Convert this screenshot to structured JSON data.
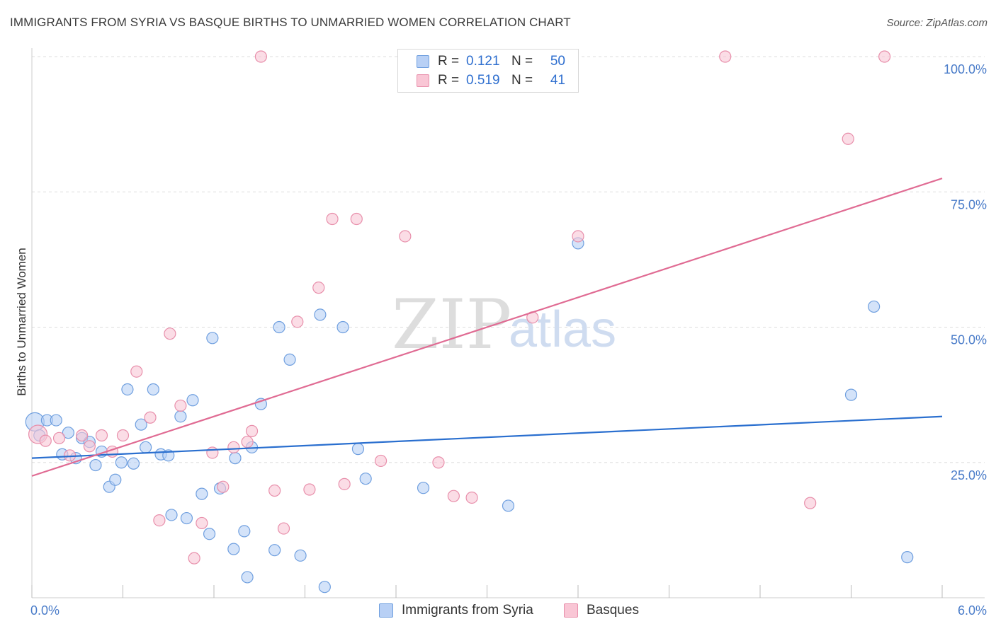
{
  "title": "IMMIGRANTS FROM SYRIA VS BASQUE BIRTHS TO UNMARRIED WOMEN CORRELATION CHART",
  "source": "Source: ZipAtlas.com",
  "watermark": {
    "zip": "ZIP",
    "atlas": "atlas"
  },
  "colors": {
    "syria_fill": "#b8d0f5",
    "syria_stroke": "#6f9fdf",
    "syria_line": "#2a6fcf",
    "basque_fill": "#f9c6d5",
    "basque_stroke": "#e88fab",
    "basque_line": "#e06b93",
    "grid": "#dddddd",
    "tick_text": "#4a7cc9"
  },
  "legend": {
    "rows": [
      {
        "r_label": "R =",
        "r_value": "0.121",
        "n_label": "N =",
        "n_value": "50"
      },
      {
        "r_label": "R =",
        "r_value": "0.519",
        "n_label": "N =",
        "n_value": "41"
      }
    ]
  },
  "bottom_legend": {
    "syria": "Immigrants from Syria",
    "basques": "Basques"
  },
  "chart_data": {
    "type": "scatter",
    "title": "IMMIGRANTS FROM SYRIA VS BASQUE BIRTHS TO UNMARRIED WOMEN CORRELATION CHART",
    "xlabel": "",
    "ylabel": "Births to Unmarried Women",
    "xlim": [
      0,
      6.0
    ],
    "ylim": [
      0,
      100
    ],
    "x_tick_labels": [
      "0.0%",
      "6.0%"
    ],
    "y_ticks": [
      25,
      50,
      75,
      100
    ],
    "y_tick_labels": [
      "25.0%",
      "50.0%",
      "75.0%",
      "100.0%"
    ],
    "series": [
      {
        "name": "Immigrants from Syria",
        "r": 0.121,
        "n": 50,
        "trend": {
          "x": [
            0,
            6.0
          ],
          "y": [
            25.8,
            33.5
          ]
        },
        "points": [
          {
            "x": 0.02,
            "y": 32.5,
            "big": true
          },
          {
            "x": 0.05,
            "y": 30.0
          },
          {
            "x": 0.1,
            "y": 32.8
          },
          {
            "x": 0.16,
            "y": 32.8
          },
          {
            "x": 0.2,
            "y": 26.5
          },
          {
            "x": 0.24,
            "y": 30.5
          },
          {
            "x": 0.29,
            "y": 25.8
          },
          {
            "x": 0.33,
            "y": 29.5
          },
          {
            "x": 0.38,
            "y": 28.8
          },
          {
            "x": 0.42,
            "y": 24.5
          },
          {
            "x": 0.46,
            "y": 27.0
          },
          {
            "x": 0.51,
            "y": 20.5
          },
          {
            "x": 0.55,
            "y": 21.8
          },
          {
            "x": 0.59,
            "y": 25.0
          },
          {
            "x": 0.63,
            "y": 38.5
          },
          {
            "x": 0.67,
            "y": 24.8
          },
          {
            "x": 0.72,
            "y": 32.0
          },
          {
            "x": 0.75,
            "y": 27.8
          },
          {
            "x": 0.8,
            "y": 38.5
          },
          {
            "x": 0.85,
            "y": 26.5
          },
          {
            "x": 0.9,
            "y": 26.3
          },
          {
            "x": 0.92,
            "y": 15.3
          },
          {
            "x": 0.98,
            "y": 33.5
          },
          {
            "x": 1.02,
            "y": 14.7
          },
          {
            "x": 1.06,
            "y": 36.5
          },
          {
            "x": 1.12,
            "y": 19.2
          },
          {
            "x": 1.17,
            "y": 11.8
          },
          {
            "x": 1.19,
            "y": 48.0
          },
          {
            "x": 1.24,
            "y": 20.2
          },
          {
            "x": 1.33,
            "y": 9.0
          },
          {
            "x": 1.34,
            "y": 25.8
          },
          {
            "x": 1.4,
            "y": 12.3
          },
          {
            "x": 1.42,
            "y": 3.8
          },
          {
            "x": 1.45,
            "y": 27.8
          },
          {
            "x": 1.51,
            "y": 35.8
          },
          {
            "x": 1.6,
            "y": 8.8
          },
          {
            "x": 1.63,
            "y": 50.0
          },
          {
            "x": 1.7,
            "y": 44.0
          },
          {
            "x": 1.77,
            "y": 7.8
          },
          {
            "x": 1.9,
            "y": 52.3
          },
          {
            "x": 1.93,
            "y": 2.0
          },
          {
            "x": 2.05,
            "y": 50.0
          },
          {
            "x": 2.15,
            "y": 27.5
          },
          {
            "x": 2.2,
            "y": 22.0
          },
          {
            "x": 2.58,
            "y": 20.3
          },
          {
            "x": 3.14,
            "y": 17.0
          },
          {
            "x": 3.6,
            "y": 65.5
          },
          {
            "x": 5.4,
            "y": 37.5
          },
          {
            "x": 5.55,
            "y": 53.8
          },
          {
            "x": 5.77,
            "y": 7.5
          }
        ]
      },
      {
        "name": "Basques",
        "r": 0.519,
        "n": 41,
        "trend": {
          "x": [
            0,
            6.0
          ],
          "y": [
            22.5,
            77.5
          ]
        },
        "points": [
          {
            "x": 0.04,
            "y": 30.2,
            "big": true
          },
          {
            "x": 0.09,
            "y": 29.0
          },
          {
            "x": 0.18,
            "y": 29.5
          },
          {
            "x": 0.25,
            "y": 26.3
          },
          {
            "x": 0.33,
            "y": 30.0
          },
          {
            "x": 0.38,
            "y": 28.0
          },
          {
            "x": 0.46,
            "y": 30.0
          },
          {
            "x": 0.53,
            "y": 27.0
          },
          {
            "x": 0.6,
            "y": 30.0
          },
          {
            "x": 0.69,
            "y": 41.8
          },
          {
            "x": 0.78,
            "y": 33.3
          },
          {
            "x": 0.84,
            "y": 14.3
          },
          {
            "x": 0.91,
            "y": 48.8
          },
          {
            "x": 0.98,
            "y": 35.5
          },
          {
            "x": 1.07,
            "y": 7.3
          },
          {
            "x": 1.12,
            "y": 13.8
          },
          {
            "x": 1.19,
            "y": 26.8
          },
          {
            "x": 1.26,
            "y": 20.5
          },
          {
            "x": 1.33,
            "y": 27.8
          },
          {
            "x": 1.42,
            "y": 28.8
          },
          {
            "x": 1.45,
            "y": 30.8
          },
          {
            "x": 1.51,
            "y": 100.0
          },
          {
            "x": 1.6,
            "y": 19.8
          },
          {
            "x": 1.66,
            "y": 12.8
          },
          {
            "x": 1.75,
            "y": 51.0
          },
          {
            "x": 1.83,
            "y": 20.0
          },
          {
            "x": 1.89,
            "y": 57.3
          },
          {
            "x": 1.98,
            "y": 70.0
          },
          {
            "x": 2.06,
            "y": 21.0
          },
          {
            "x": 2.14,
            "y": 70.0
          },
          {
            "x": 2.3,
            "y": 25.3
          },
          {
            "x": 2.46,
            "y": 66.8
          },
          {
            "x": 2.68,
            "y": 25.0
          },
          {
            "x": 2.78,
            "y": 18.8
          },
          {
            "x": 2.9,
            "y": 18.5
          },
          {
            "x": 3.3,
            "y": 51.8
          },
          {
            "x": 3.6,
            "y": 66.8
          },
          {
            "x": 4.57,
            "y": 100.0
          },
          {
            "x": 5.13,
            "y": 17.5
          },
          {
            "x": 5.38,
            "y": 84.8
          },
          {
            "x": 5.62,
            "y": 100.0
          }
        ]
      }
    ]
  }
}
